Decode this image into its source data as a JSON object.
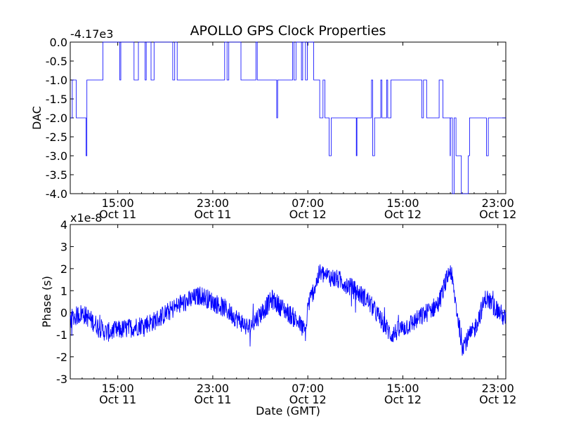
{
  "chart_data": [
    {
      "type": "line",
      "title": "APOLLO GPS Clock Properties",
      "ylabel": "DAC",
      "xlabel": "",
      "y_offset_label": "-4.17e3",
      "color": "#0000ff",
      "ylim": [
        -4.0,
        0.0
      ],
      "yticks": [
        "0.0",
        "-0.5",
        "-1.0",
        "-1.5",
        "-2.0",
        "-2.5",
        "-3.0",
        "-3.5",
        "-4.0"
      ],
      "xtick_labels": [
        [
          "15:00",
          "Oct 11"
        ],
        [
          "23:00",
          "Oct 11"
        ],
        [
          "07:00",
          "Oct 12"
        ],
        [
          "15:00",
          "Oct 12"
        ],
        [
          "23:00",
          "Oct 12"
        ]
      ],
      "xlim": [
        "Oct 11 11:00",
        "Oct 12 23:40"
      ],
      "levels": [
        {
          "x": [
            "Oct 11 11:00",
            "Oct 11 11:30"
          ],
          "y": -1.0
        },
        {
          "x": [
            "Oct 11 11:30",
            "Oct 11 12:30"
          ],
          "y": -2.0
        },
        {
          "x": [
            "Oct 11 12:30",
            "Oct 11 13:45"
          ],
          "y": -1.0
        },
        {
          "x": [
            "Oct 11 13:45",
            "Oct 11 20:00"
          ],
          "y": 0.0
        },
        {
          "x": [
            "Oct 11 20:00",
            "Oct 12 00:00"
          ],
          "y": -1.0
        },
        {
          "x": [
            "Oct 12 00:00",
            "Oct 12 01:30"
          ],
          "y": 0.0
        },
        {
          "x": [
            "Oct 12 01:30",
            "Oct 12 06:00"
          ],
          "y": -1.0
        },
        {
          "x": [
            "Oct 12 06:00",
            "Oct 12 07:30"
          ],
          "y": 0.0
        },
        {
          "x": [
            "Oct 12 07:30",
            "Oct 12 08:00"
          ],
          "y": -1.0
        },
        {
          "x": [
            "Oct 12 08:00",
            "Oct 12 14:00"
          ],
          "y": -2.0
        },
        {
          "x": [
            "Oct 12 14:00",
            "Oct 12 17:00"
          ],
          "y": -1.0
        },
        {
          "x": [
            "Oct 12 17:00",
            "Oct 12 19:00"
          ],
          "y": -2.0
        },
        {
          "x": [
            "Oct 12 19:00",
            "Oct 12 20:00"
          ],
          "y": -3.0
        },
        {
          "x": [
            "Oct 12 20:00",
            "Oct 12 20:30"
          ],
          "y": -4.0
        },
        {
          "x": [
            "Oct 12 20:30",
            "Oct 12 23:40"
          ],
          "y": -2.0
        }
      ]
    },
    {
      "type": "line",
      "title": "",
      "ylabel": "Phase (s)",
      "xlabel": "Date (GMT)",
      "y_scale_label": "x1e-8",
      "color": "#0000ff",
      "ylim": [
        -3,
        4
      ],
      "yticks": [
        "4",
        "3",
        "2",
        "1",
        "0",
        "-1",
        "-2",
        "-3"
      ],
      "xtick_labels": [
        [
          "15:00",
          "Oct 11"
        ],
        [
          "23:00",
          "Oct 11"
        ],
        [
          "07:00",
          "Oct 12"
        ],
        [
          "15:00",
          "Oct 12"
        ],
        [
          "23:00",
          "Oct 12"
        ]
      ],
      "xlim": [
        "Oct 11 11:00",
        "Oct 12 23:40"
      ],
      "x": [
        "Oct 11 11:00",
        "Oct 11 12:00",
        "Oct 11 14:00",
        "Oct 11 16:00",
        "Oct 11 18:00",
        "Oct 11 20:00",
        "Oct 11 22:00",
        "Oct 12 00:00",
        "Oct 12 02:00",
        "Oct 12 04:00",
        "Oct 12 06:00",
        "Oct 12 06:50",
        "Oct 12 07:00",
        "Oct 12 08:00",
        "Oct 12 10:00",
        "Oct 12 12:00",
        "Oct 12 14:00",
        "Oct 12 16:00",
        "Oct 12 18:00",
        "Oct 12 19:00",
        "Oct 12 20:00",
        "Oct 12 21:00",
        "Oct 12 22:00",
        "Oct 12 23:40"
      ],
      "values": [
        -0.3,
        0.0,
        -0.9,
        -0.7,
        -0.4,
        0.3,
        0.8,
        0.2,
        -0.7,
        0.6,
        -0.3,
        -0.9,
        0.3,
        1.8,
        1.4,
        0.6,
        -1.0,
        -0.4,
        0.4,
        2.0,
        -1.5,
        -0.8,
        0.7,
        -0.3
      ]
    }
  ]
}
